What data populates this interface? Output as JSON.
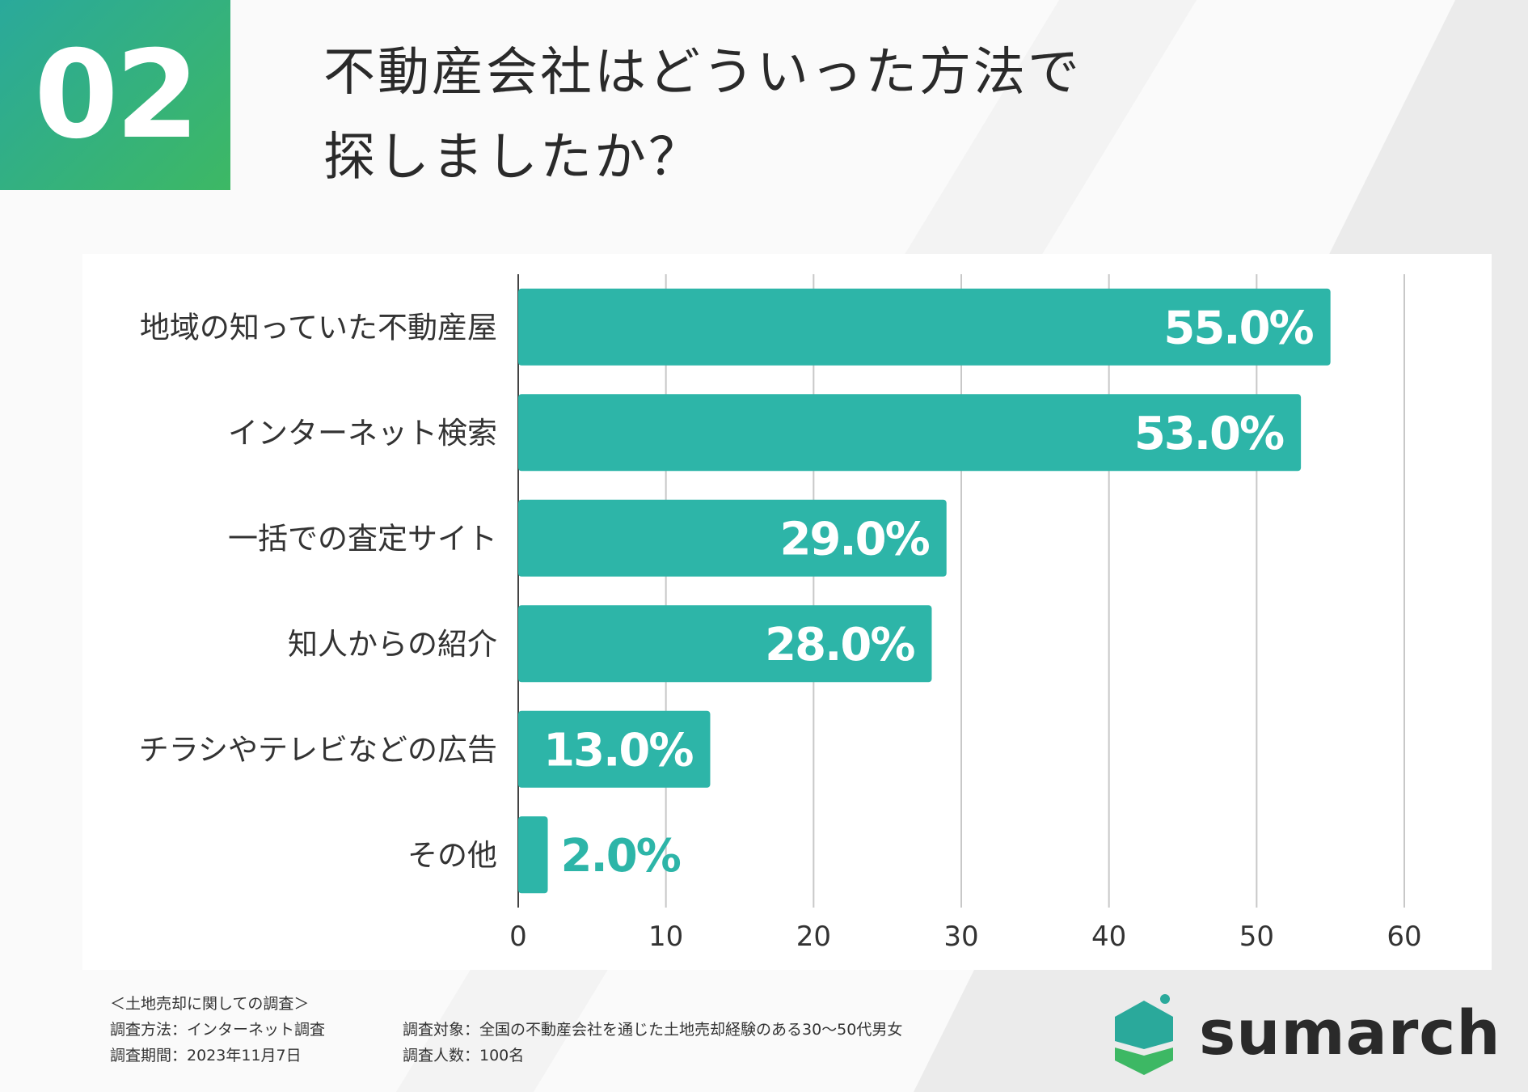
{
  "badge": {
    "number": "02"
  },
  "title": {
    "line1": "不動産会社はどういった方法で",
    "line2": "探しましたか？"
  },
  "chart_data": {
    "type": "bar",
    "orientation": "horizontal",
    "categories": [
      "地域の知っていた不動産屋",
      "インターネット検索",
      "一括での査定サイト",
      "知人からの紹介",
      "チラシやテレビなどの広告",
      "その他"
    ],
    "values": [
      55.0,
      53.0,
      29.0,
      28.0,
      13.0,
      2.0
    ],
    "value_labels": [
      "55.0%",
      "53.0%",
      "29.0%",
      "28.0%",
      "13.0%",
      "2.0%"
    ],
    "xlim": [
      0,
      60
    ],
    "xticks": [
      0,
      10,
      20,
      30,
      40,
      50,
      60
    ],
    "grid": true,
    "bar_color": "#2db5a8",
    "title": "",
    "xlabel": "",
    "ylabel": ""
  },
  "notes": {
    "heading": "＜土地売却に関しての調査＞",
    "method": "調査方法：インターネット調査",
    "target": "調査対象：全国の不動産会社を通じた土地売却経験のある30〜50代男女",
    "period": "調査期間：2023年11月7日",
    "count": "調査人数：100名"
  },
  "brand": {
    "name": "sumarch",
    "colors": {
      "teal": "#2aa99b",
      "green": "#3db864",
      "dark": "#2a2a2a"
    }
  }
}
